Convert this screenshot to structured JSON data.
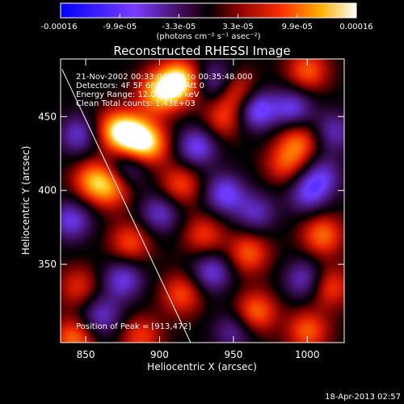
{
  "colorbar": {
    "tick_labels": [
      "-0.00016",
      "-9.9e-05",
      "-3.3e-05",
      "3.3e-05",
      "9.9e-05",
      "0.00016"
    ],
    "units_html": "(photons cm⁻² s⁻¹ asec⁻²)",
    "range": [
      -0.00016,
      0.00016
    ]
  },
  "title": "Reconstructed RHESSI Image",
  "annotation": {
    "line1": "21-Nov-2002 00:33:04.000 to 00:35:48.000",
    "line2": "Detectors: 4F 5F 6F 7F 8F, Att 0",
    "line3": "Energy Range: 12.0 - 25.0 keV",
    "line4": "Clean     Total counts: 1.43E+03",
    "peak": "Position of Peak = [913,472]"
  },
  "footer": {
    "timestamp": "18-Apr-2013 02:57"
  },
  "chart_data": {
    "type": "heatmap",
    "title": "Reconstructed RHESSI Image",
    "xlabel": "Heliocentric X (arcsec)",
    "ylabel": "Heliocentric Y (arcsec)",
    "xlim": [
      833,
      1025
    ],
    "ylim": [
      297,
      489
    ],
    "x_ticks": [
      850,
      900,
      950,
      1000
    ],
    "y_ticks": [
      350,
      400,
      450
    ],
    "colormap": "blue-purple-black-red-yellow-white",
    "value_range": [
      -0.00016,
      0.00016
    ],
    "peak_position": [
      913,
      472
    ],
    "limb_line": [
      [
        834,
        482
      ],
      [
        921,
        297
      ]
    ],
    "sources": [
      {
        "x": 913,
        "y": 474,
        "v": 1.0
      },
      {
        "x": 899,
        "y": 466,
        "v": 0.75
      },
      {
        "x": 870,
        "y": 441,
        "v": 0.7
      },
      {
        "x": 882,
        "y": 437,
        "v": 0.8
      },
      {
        "x": 893,
        "y": 431,
        "v": 0.65
      },
      {
        "x": 952,
        "y": 467,
        "v": 0.55
      },
      {
        "x": 943,
        "y": 449,
        "v": 0.45
      },
      {
        "x": 855,
        "y": 407,
        "v": 0.65
      },
      {
        "x": 868,
        "y": 402,
        "v": 0.55
      },
      {
        "x": 914,
        "y": 404,
        "v": 0.5
      },
      {
        "x": 1000,
        "y": 481,
        "v": 0.55
      },
      {
        "x": 994,
        "y": 433,
        "v": 0.55
      },
      {
        "x": 985,
        "y": 418,
        "v": 0.45
      },
      {
        "x": 880,
        "y": 365,
        "v": 0.5
      },
      {
        "x": 930,
        "y": 370,
        "v": 0.45
      },
      {
        "x": 960,
        "y": 358,
        "v": 0.55
      },
      {
        "x": 1010,
        "y": 370,
        "v": 0.6
      },
      {
        "x": 845,
        "y": 335,
        "v": 0.4
      },
      {
        "x": 915,
        "y": 330,
        "v": 0.5
      },
      {
        "x": 965,
        "y": 318,
        "v": 0.6
      },
      {
        "x": 1000,
        "y": 305,
        "v": 0.55
      },
      {
        "x": 1015,
        "y": 335,
        "v": 0.5
      },
      {
        "x": 842,
        "y": 300,
        "v": 0.6
      },
      {
        "x": 887,
        "y": 301,
        "v": 0.45
      },
      {
        "x": 925,
        "y": 430,
        "v": -0.6
      },
      {
        "x": 965,
        "y": 455,
        "v": -0.7
      },
      {
        "x": 938,
        "y": 474,
        "v": -0.5
      },
      {
        "x": 990,
        "y": 456,
        "v": -0.55
      },
      {
        "x": 1018,
        "y": 440,
        "v": -0.45
      },
      {
        "x": 845,
        "y": 438,
        "v": -0.5
      },
      {
        "x": 878,
        "y": 415,
        "v": -0.45
      },
      {
        "x": 840,
        "y": 380,
        "v": -0.55
      },
      {
        "x": 900,
        "y": 385,
        "v": -0.5
      },
      {
        "x": 944,
        "y": 398,
        "v": -0.6
      },
      {
        "x": 1000,
        "y": 398,
        "v": -0.5
      },
      {
        "x": 965,
        "y": 385,
        "v": -0.45
      },
      {
        "x": 875,
        "y": 340,
        "v": -0.55
      },
      {
        "x": 860,
        "y": 315,
        "v": -0.5
      },
      {
        "x": 935,
        "y": 345,
        "v": -0.55
      },
      {
        "x": 998,
        "y": 340,
        "v": -0.5
      },
      {
        "x": 1010,
        "y": 410,
        "v": -0.45
      },
      {
        "x": 950,
        "y": 305,
        "v": -0.4
      }
    ]
  }
}
